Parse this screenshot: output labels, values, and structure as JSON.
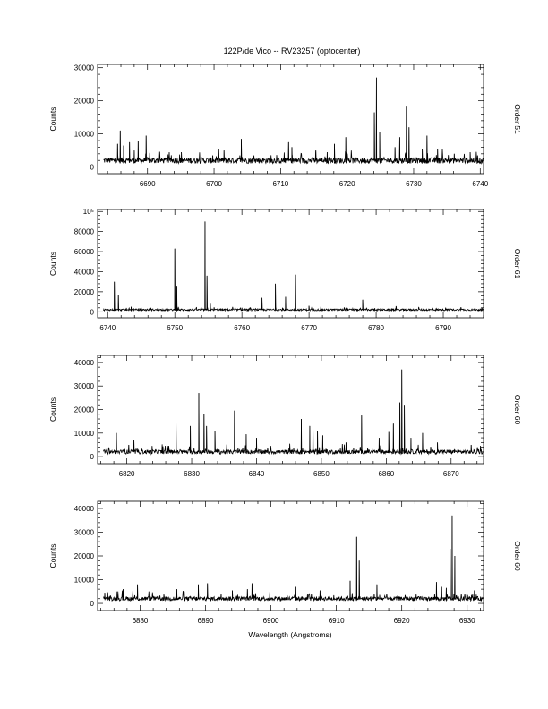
{
  "figure": {
    "title": "122P/de Vico -- RV23257 (optocenter)",
    "xlabel": "Wavelength (Angstroms)"
  },
  "chart_data": [
    {
      "type": "line",
      "ylabel": "Counts",
      "order_label": "Order 51",
      "xlim": [
        6682.5,
        6740.5
      ],
      "ylim": [
        -2000,
        31000
      ],
      "xticks": [
        6690,
        6700,
        6710,
        6720,
        6730,
        6740
      ],
      "yticks": [
        0,
        10000,
        20000,
        30000
      ],
      "ytick_labels": [
        "0",
        "10000",
        "20000",
        "30000"
      ],
      "baseline": 2000,
      "lines": [
        {
          "x": 6685.5,
          "y": 7000
        },
        {
          "x": 6685.9,
          "y": 11000
        },
        {
          "x": 6686.4,
          "y": 6500
        },
        {
          "x": 6687.3,
          "y": 7500
        },
        {
          "x": 6688.0,
          "y": 5000
        },
        {
          "x": 6688.6,
          "y": 8000
        },
        {
          "x": 6689.8,
          "y": 9500
        },
        {
          "x": 6695.1,
          "y": 4500
        },
        {
          "x": 6699.8,
          "y": 3500
        },
        {
          "x": 6701.5,
          "y": 5000
        },
        {
          "x": 6704.1,
          "y": 8500
        },
        {
          "x": 6711.2,
          "y": 7500
        },
        {
          "x": 6711.7,
          "y": 6000
        },
        {
          "x": 6715.3,
          "y": 5000
        },
        {
          "x": 6717.0,
          "y": 4500
        },
        {
          "x": 6718.1,
          "y": 7000
        },
        {
          "x": 6719.8,
          "y": 9000
        },
        {
          "x": 6724.1,
          "y": 16500
        },
        {
          "x": 6724.4,
          "y": 27000
        },
        {
          "x": 6724.9,
          "y": 10500
        },
        {
          "x": 6727.2,
          "y": 6000
        },
        {
          "x": 6727.9,
          "y": 9000
        },
        {
          "x": 6728.9,
          "y": 18500
        },
        {
          "x": 6729.3,
          "y": 12000
        },
        {
          "x": 6731.3,
          "y": 5500
        },
        {
          "x": 6732.0,
          "y": 9500
        },
        {
          "x": 6733.6,
          "y": 5500
        },
        {
          "x": 6736.1,
          "y": 4000
        },
        {
          "x": 6738.5,
          "y": 4500
        },
        {
          "x": 6739.6,
          "y": 3500
        }
      ]
    },
    {
      "type": "line",
      "ylabel": "Counts",
      "order_label": "Order 61",
      "xlim": [
        6738.5,
        6796
      ],
      "ylim": [
        -6000,
        102000
      ],
      "xticks": [
        6740,
        6750,
        6760,
        6770,
        6780,
        6790
      ],
      "yticks": [
        0,
        20000,
        40000,
        60000,
        80000,
        100000
      ],
      "ytick_labels": [
        "0",
        "20000",
        "40000",
        "60000",
        "80000",
        "10⁵"
      ],
      "baseline": 2000,
      "lines": [
        {
          "x": 6741.0,
          "y": 30000
        },
        {
          "x": 6741.6,
          "y": 17000
        },
        {
          "x": 6743.5,
          "y": 5000
        },
        {
          "x": 6745.0,
          "y": 4000
        },
        {
          "x": 6750.0,
          "y": 63000
        },
        {
          "x": 6750.3,
          "y": 25000
        },
        {
          "x": 6754.5,
          "y": 90000
        },
        {
          "x": 6754.8,
          "y": 36000
        },
        {
          "x": 6755.3,
          "y": 8000
        },
        {
          "x": 6760.0,
          "y": 4000
        },
        {
          "x": 6763.0,
          "y": 14000
        },
        {
          "x": 6765.0,
          "y": 28000
        },
        {
          "x": 6766.5,
          "y": 15000
        },
        {
          "x": 6768.0,
          "y": 37000
        },
        {
          "x": 6770.0,
          "y": 6000
        },
        {
          "x": 6775.5,
          "y": 4000
        },
        {
          "x": 6778.0,
          "y": 12000
        },
        {
          "x": 6783.0,
          "y": 3500
        },
        {
          "x": 6789.0,
          "y": 3000
        }
      ]
    },
    {
      "type": "line",
      "ylabel": "Counts",
      "order_label": "Order 60",
      "xlim": [
        6815.5,
        6875
      ],
      "ylim": [
        -3000,
        43000
      ],
      "xticks": [
        6820,
        6830,
        6840,
        6850,
        6860,
        6870
      ],
      "yticks": [
        0,
        10000,
        20000,
        30000,
        40000
      ],
      "ytick_labels": [
        "0",
        "10000",
        "20000",
        "30000",
        "40000"
      ],
      "baseline": 2000,
      "lines": [
        {
          "x": 6818.4,
          "y": 10000
        },
        {
          "x": 6820.3,
          "y": 5000
        },
        {
          "x": 6821.1,
          "y": 7000
        },
        {
          "x": 6823.9,
          "y": 4500
        },
        {
          "x": 6826.3,
          "y": 4500
        },
        {
          "x": 6827.6,
          "y": 14500
        },
        {
          "x": 6829.8,
          "y": 13000
        },
        {
          "x": 6831.1,
          "y": 27000
        },
        {
          "x": 6831.9,
          "y": 18000
        },
        {
          "x": 6832.3,
          "y": 13000
        },
        {
          "x": 6833.6,
          "y": 11000
        },
        {
          "x": 6836.6,
          "y": 19500
        },
        {
          "x": 6838.4,
          "y": 9500
        },
        {
          "x": 6840.0,
          "y": 8000
        },
        {
          "x": 6846.9,
          "y": 16000
        },
        {
          "x": 6848.2,
          "y": 13000
        },
        {
          "x": 6848.7,
          "y": 15000
        },
        {
          "x": 6849.4,
          "y": 11000
        },
        {
          "x": 6850.2,
          "y": 9000
        },
        {
          "x": 6853.8,
          "y": 6000
        },
        {
          "x": 6856.2,
          "y": 17500
        },
        {
          "x": 6858.9,
          "y": 8000
        },
        {
          "x": 6860.4,
          "y": 10500
        },
        {
          "x": 6861.1,
          "y": 14000
        },
        {
          "x": 6862.1,
          "y": 23000
        },
        {
          "x": 6862.4,
          "y": 37000
        },
        {
          "x": 6862.8,
          "y": 22000
        },
        {
          "x": 6863.8,
          "y": 8000
        },
        {
          "x": 6865.6,
          "y": 10000
        },
        {
          "x": 6867.9,
          "y": 6000
        },
        {
          "x": 6873.1,
          "y": 5000
        }
      ]
    },
    {
      "type": "line",
      "ylabel": "Counts",
      "order_label": "Order 60",
      "xlim": [
        6873.5,
        6932.5
      ],
      "ylim": [
        -3000,
        43000
      ],
      "xticks": [
        6880,
        6890,
        6900,
        6910,
        6920,
        6930
      ],
      "yticks": [
        0,
        10000,
        20000,
        30000,
        40000
      ],
      "ytick_labels": [
        "0",
        "10000",
        "20000",
        "30000",
        "40000"
      ],
      "baseline": 2000,
      "lines": [
        {
          "x": 6874.6,
          "y": 4500
        },
        {
          "x": 6876.4,
          "y": 5000
        },
        {
          "x": 6877.4,
          "y": 6000
        },
        {
          "x": 6878.9,
          "y": 5500
        },
        {
          "x": 6879.6,
          "y": 8000
        },
        {
          "x": 6885.6,
          "y": 6000
        },
        {
          "x": 6888.9,
          "y": 8000
        },
        {
          "x": 6890.3,
          "y": 8500
        },
        {
          "x": 6894.1,
          "y": 5500
        },
        {
          "x": 6896.4,
          "y": 6000
        },
        {
          "x": 6897.1,
          "y": 8500
        },
        {
          "x": 6903.8,
          "y": 7000
        },
        {
          "x": 6907.5,
          "y": 5500
        },
        {
          "x": 6912.1,
          "y": 9500
        },
        {
          "x": 6913.1,
          "y": 28000
        },
        {
          "x": 6913.5,
          "y": 18000
        },
        {
          "x": 6916.2,
          "y": 8000
        },
        {
          "x": 6925.3,
          "y": 9000
        },
        {
          "x": 6926.1,
          "y": 7000
        },
        {
          "x": 6926.8,
          "y": 6500
        },
        {
          "x": 6927.4,
          "y": 23000
        },
        {
          "x": 6927.7,
          "y": 37000
        },
        {
          "x": 6928.1,
          "y": 20000
        },
        {
          "x": 6931.1,
          "y": 5500
        }
      ]
    }
  ]
}
